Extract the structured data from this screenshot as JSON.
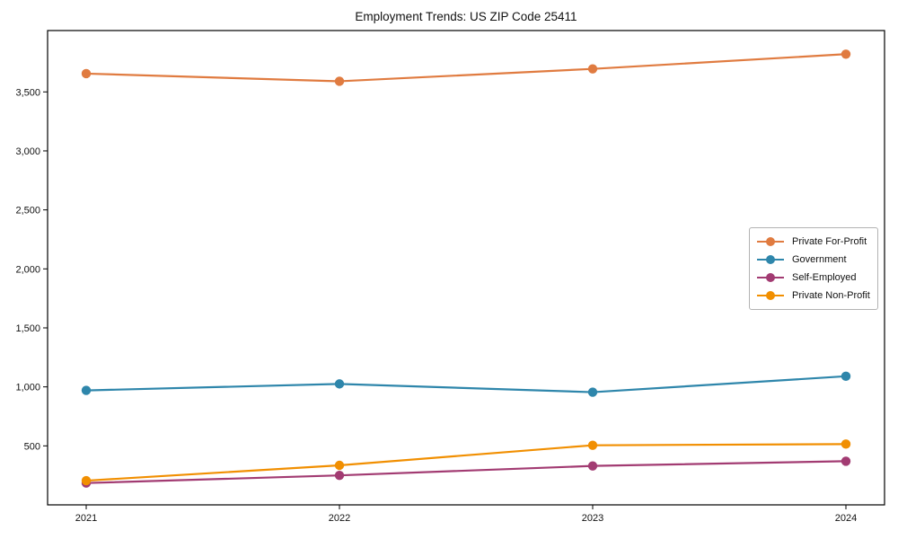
{
  "chart_data": {
    "type": "line",
    "title": "Employment Trends: US ZIP Code 25411",
    "x_labels": [
      "2021",
      "2022",
      "2023",
      "2024"
    ],
    "series": [
      {
        "name": "Private For-Profit",
        "color": "#E07B40",
        "values": [
          3655,
          3590,
          3695,
          3820
        ]
      },
      {
        "name": "Government",
        "color": "#2E86AB",
        "values": [
          970,
          1025,
          955,
          1090
        ]
      },
      {
        "name": "Self-Employed",
        "color": "#A23B72",
        "values": [
          185,
          250,
          330,
          370
        ]
      },
      {
        "name": "Private Non-Profit",
        "color": "#F18F01",
        "values": [
          205,
          335,
          505,
          515
        ]
      }
    ],
    "ylim": [
      0,
      4020
    ],
    "yticks": [
      500,
      1000,
      1500,
      2000,
      2500,
      3000,
      3500
    ],
    "grid": false,
    "legend_position": "center-right",
    "axis_color": "#000000",
    "text_color": "#111111"
  }
}
